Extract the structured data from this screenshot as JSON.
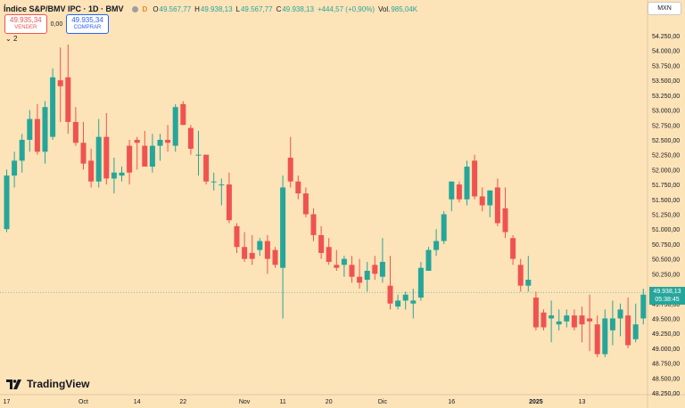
{
  "header": {
    "symbol_title": "Índice S&P/BMV IPC · 1D · BMV",
    "currency_icon": "D",
    "open_label": "O",
    "open": "49.567,77",
    "high_label": "H",
    "high": "49.938,13",
    "low_label": "L",
    "low": "49.567,77",
    "close_label": "C",
    "close": "49.938,13",
    "change": "+444,57 (+0,90%)",
    "volume_label": "Vol.",
    "volume": "985,04K"
  },
  "trade": {
    "sell_price": "49.935,34",
    "sell_label": "VENDER",
    "spread": "0,00",
    "buy_price": "49.935,34",
    "buy_label": "COMPRAR"
  },
  "indicators_toggle": "2",
  "currency_select": "MXN",
  "price_label": {
    "price": "49.938,13",
    "countdown": "05:38:45"
  },
  "logo_text": "TradingView",
  "colors": {
    "up": "#26a69a",
    "down": "#ef5350",
    "background": "#fde3b8"
  },
  "chart_data": {
    "type": "candlestick",
    "y_axis": {
      "ticks": [
        "54.250,00",
        "54.000,00",
        "53.750,00",
        "53.500,00",
        "53.250,00",
        "53.000,00",
        "52.750,00",
        "52.500,00",
        "52.250,00",
        "52.000,00",
        "51.750,00",
        "51.500,00",
        "51.250,00",
        "51.000,00",
        "50.750,00",
        "50.500,00",
        "50.250,00",
        "50.000,00",
        "49.750,00",
        "49.500,00",
        "49.250,00",
        "49.000,00",
        "48.750,00",
        "48.500,00",
        "48.250,00"
      ],
      "min": 48250,
      "max": 54250,
      "position": "right"
    },
    "x_axis": {
      "ticks": [
        {
          "label": "17",
          "index": 0
        },
        {
          "label": "Oct",
          "index": 10
        },
        {
          "label": "14",
          "index": 17
        },
        {
          "label": "22",
          "index": 23
        },
        {
          "label": "Nov",
          "index": 31
        },
        {
          "label": "11",
          "index": 36
        },
        {
          "label": "20",
          "index": 42
        },
        {
          "label": "Dic",
          "index": 49
        },
        {
          "label": "16",
          "index": 58
        },
        {
          "label": "2025",
          "index": 69
        },
        {
          "label": "13",
          "index": 75
        }
      ]
    },
    "last_price": 49938.13,
    "candles": [
      {
        "o": 51000,
        "h": 52000,
        "l": 50950,
        "c": 51900
      },
      {
        "o": 51900,
        "h": 52300,
        "l": 51700,
        "c": 52150
      },
      {
        "o": 52150,
        "h": 52600,
        "l": 51950,
        "c": 52500
      },
      {
        "o": 52500,
        "h": 53000,
        "l": 52300,
        "c": 52850
      },
      {
        "o": 52850,
        "h": 53100,
        "l": 52250,
        "c": 52300
      },
      {
        "o": 52300,
        "h": 53150,
        "l": 52100,
        "c": 53050
      },
      {
        "o": 52550,
        "h": 53700,
        "l": 52500,
        "c": 53550
      },
      {
        "o": 53500,
        "h": 54050,
        "l": 52800,
        "c": 53400
      },
      {
        "o": 53550,
        "h": 54100,
        "l": 52600,
        "c": 52800
      },
      {
        "o": 52800,
        "h": 53050,
        "l": 52400,
        "c": 52450
      },
      {
        "o": 52450,
        "h": 52800,
        "l": 52000,
        "c": 52100
      },
      {
        "o": 52150,
        "h": 52350,
        "l": 51700,
        "c": 51800
      },
      {
        "o": 51800,
        "h": 52850,
        "l": 51700,
        "c": 52550
      },
      {
        "o": 52550,
        "h": 52950,
        "l": 51750,
        "c": 51850
      },
      {
        "o": 51850,
        "h": 52200,
        "l": 51600,
        "c": 51950
      },
      {
        "o": 51900,
        "h": 52050,
        "l": 51800,
        "c": 51950
      },
      {
        "o": 52400,
        "h": 52500,
        "l": 51750,
        "c": 51950
      },
      {
        "o": 52500,
        "h": 52550,
        "l": 52000,
        "c": 52450
      },
      {
        "o": 52400,
        "h": 52650,
        "l": 52100,
        "c": 52050
      },
      {
        "o": 52050,
        "h": 52600,
        "l": 51950,
        "c": 52400
      },
      {
        "o": 52400,
        "h": 52600,
        "l": 52150,
        "c": 52500
      },
      {
        "o": 52500,
        "h": 52750,
        "l": 52300,
        "c": 52450
      },
      {
        "o": 52400,
        "h": 53100,
        "l": 52300,
        "c": 53050
      },
      {
        "o": 53100,
        "h": 53150,
        "l": 52750,
        "c": 52750
      },
      {
        "o": 52700,
        "h": 52750,
        "l": 52250,
        "c": 52350
      },
      {
        "o": 52250,
        "h": 52650,
        "l": 51900,
        "c": 52250
      },
      {
        "o": 52250,
        "h": 52250,
        "l": 51750,
        "c": 51800
      },
      {
        "o": 51800,
        "h": 51950,
        "l": 51650,
        "c": 51800
      },
      {
        "o": 51750,
        "h": 51850,
        "l": 51400,
        "c": 51750
      },
      {
        "o": 51750,
        "h": 51950,
        "l": 51100,
        "c": 51150
      },
      {
        "o": 51050,
        "h": 51100,
        "l": 50600,
        "c": 50700
      },
      {
        "o": 50700,
        "h": 50950,
        "l": 50450,
        "c": 50500
      },
      {
        "o": 50600,
        "h": 50900,
        "l": 50400,
        "c": 50500
      },
      {
        "o": 50650,
        "h": 50850,
        "l": 50550,
        "c": 50800
      },
      {
        "o": 50800,
        "h": 50900,
        "l": 50250,
        "c": 50500
      },
      {
        "o": 50650,
        "h": 50700,
        "l": 50350,
        "c": 50400
      },
      {
        "o": 50350,
        "h": 51900,
        "l": 49500,
        "c": 51700
      },
      {
        "o": 52200,
        "h": 52550,
        "l": 51700,
        "c": 51800
      },
      {
        "o": 51800,
        "h": 51900,
        "l": 51500,
        "c": 51600
      },
      {
        "o": 51600,
        "h": 51700,
        "l": 51200,
        "c": 51250
      },
      {
        "o": 51250,
        "h": 51350,
        "l": 50800,
        "c": 50900
      },
      {
        "o": 50900,
        "h": 51050,
        "l": 50500,
        "c": 50600
      },
      {
        "o": 50700,
        "h": 50850,
        "l": 50400,
        "c": 50450
      },
      {
        "o": 50400,
        "h": 50650,
        "l": 50300,
        "c": 50350
      },
      {
        "o": 50400,
        "h": 50550,
        "l": 50200,
        "c": 50500
      },
      {
        "o": 50400,
        "h": 50550,
        "l": 50100,
        "c": 50200
      },
      {
        "o": 50200,
        "h": 50500,
        "l": 50000,
        "c": 50100
      },
      {
        "o": 50150,
        "h": 50450,
        "l": 49950,
        "c": 50300
      },
      {
        "o": 50400,
        "h": 50550,
        "l": 50150,
        "c": 50250
      },
      {
        "o": 50200,
        "h": 50850,
        "l": 50100,
        "c": 50450
      },
      {
        "o": 50050,
        "h": 50550,
        "l": 49650,
        "c": 49750
      },
      {
        "o": 49700,
        "h": 49900,
        "l": 49650,
        "c": 49800
      },
      {
        "o": 49800,
        "h": 49950,
        "l": 49650,
        "c": 49900
      },
      {
        "o": 49750,
        "h": 50000,
        "l": 49500,
        "c": 49800
      },
      {
        "o": 49850,
        "h": 50450,
        "l": 49800,
        "c": 50350
      },
      {
        "o": 50300,
        "h": 50700,
        "l": 50300,
        "c": 50650
      },
      {
        "o": 50650,
        "h": 51000,
        "l": 50550,
        "c": 50800
      },
      {
        "o": 50800,
        "h": 51300,
        "l": 50750,
        "c": 51250
      },
      {
        "o": 51500,
        "h": 51800,
        "l": 51300,
        "c": 51800
      },
      {
        "o": 51750,
        "h": 51800,
        "l": 51450,
        "c": 51500
      },
      {
        "o": 51500,
        "h": 52150,
        "l": 51400,
        "c": 52050
      },
      {
        "o": 52150,
        "h": 52250,
        "l": 51500,
        "c": 51550
      },
      {
        "o": 51550,
        "h": 51700,
        "l": 51300,
        "c": 51400
      },
      {
        "o": 51400,
        "h": 51650,
        "l": 51200,
        "c": 51650
      },
      {
        "o": 51700,
        "h": 51850,
        "l": 51050,
        "c": 51100
      },
      {
        "o": 51350,
        "h": 51700,
        "l": 50850,
        "c": 50950
      },
      {
        "o": 50850,
        "h": 50900,
        "l": 50400,
        "c": 50500
      },
      {
        "o": 50400,
        "h": 50500,
        "l": 49950,
        "c": 50050
      },
      {
        "o": 50050,
        "h": 50550,
        "l": 49950,
        "c": 50150
      },
      {
        "o": 49850,
        "h": 49950,
        "l": 49300,
        "c": 49350
      },
      {
        "o": 49600,
        "h": 49650,
        "l": 49300,
        "c": 49350
      },
      {
        "o": 49500,
        "h": 49800,
        "l": 49100,
        "c": 49550
      },
      {
        "o": 49400,
        "h": 49650,
        "l": 49300,
        "c": 49450
      },
      {
        "o": 49450,
        "h": 49650,
        "l": 49350,
        "c": 49550
      },
      {
        "o": 49550,
        "h": 49650,
        "l": 49300,
        "c": 49350
      },
      {
        "o": 49550,
        "h": 49700,
        "l": 49100,
        "c": 49400
      },
      {
        "o": 49500,
        "h": 49900,
        "l": 48950,
        "c": 49450
      },
      {
        "o": 49400,
        "h": 49550,
        "l": 48850,
        "c": 48900
      },
      {
        "o": 48900,
        "h": 49650,
        "l": 48850,
        "c": 49500
      },
      {
        "o": 49300,
        "h": 49800,
        "l": 49050,
        "c": 49500
      },
      {
        "o": 49500,
        "h": 49750,
        "l": 49200,
        "c": 49650
      },
      {
        "o": 49550,
        "h": 49850,
        "l": 49000,
        "c": 49050
      },
      {
        "o": 49150,
        "h": 49750,
        "l": 49100,
        "c": 49400
      },
      {
        "o": 49500,
        "h": 50000,
        "l": 49400,
        "c": 49900
      }
    ]
  }
}
